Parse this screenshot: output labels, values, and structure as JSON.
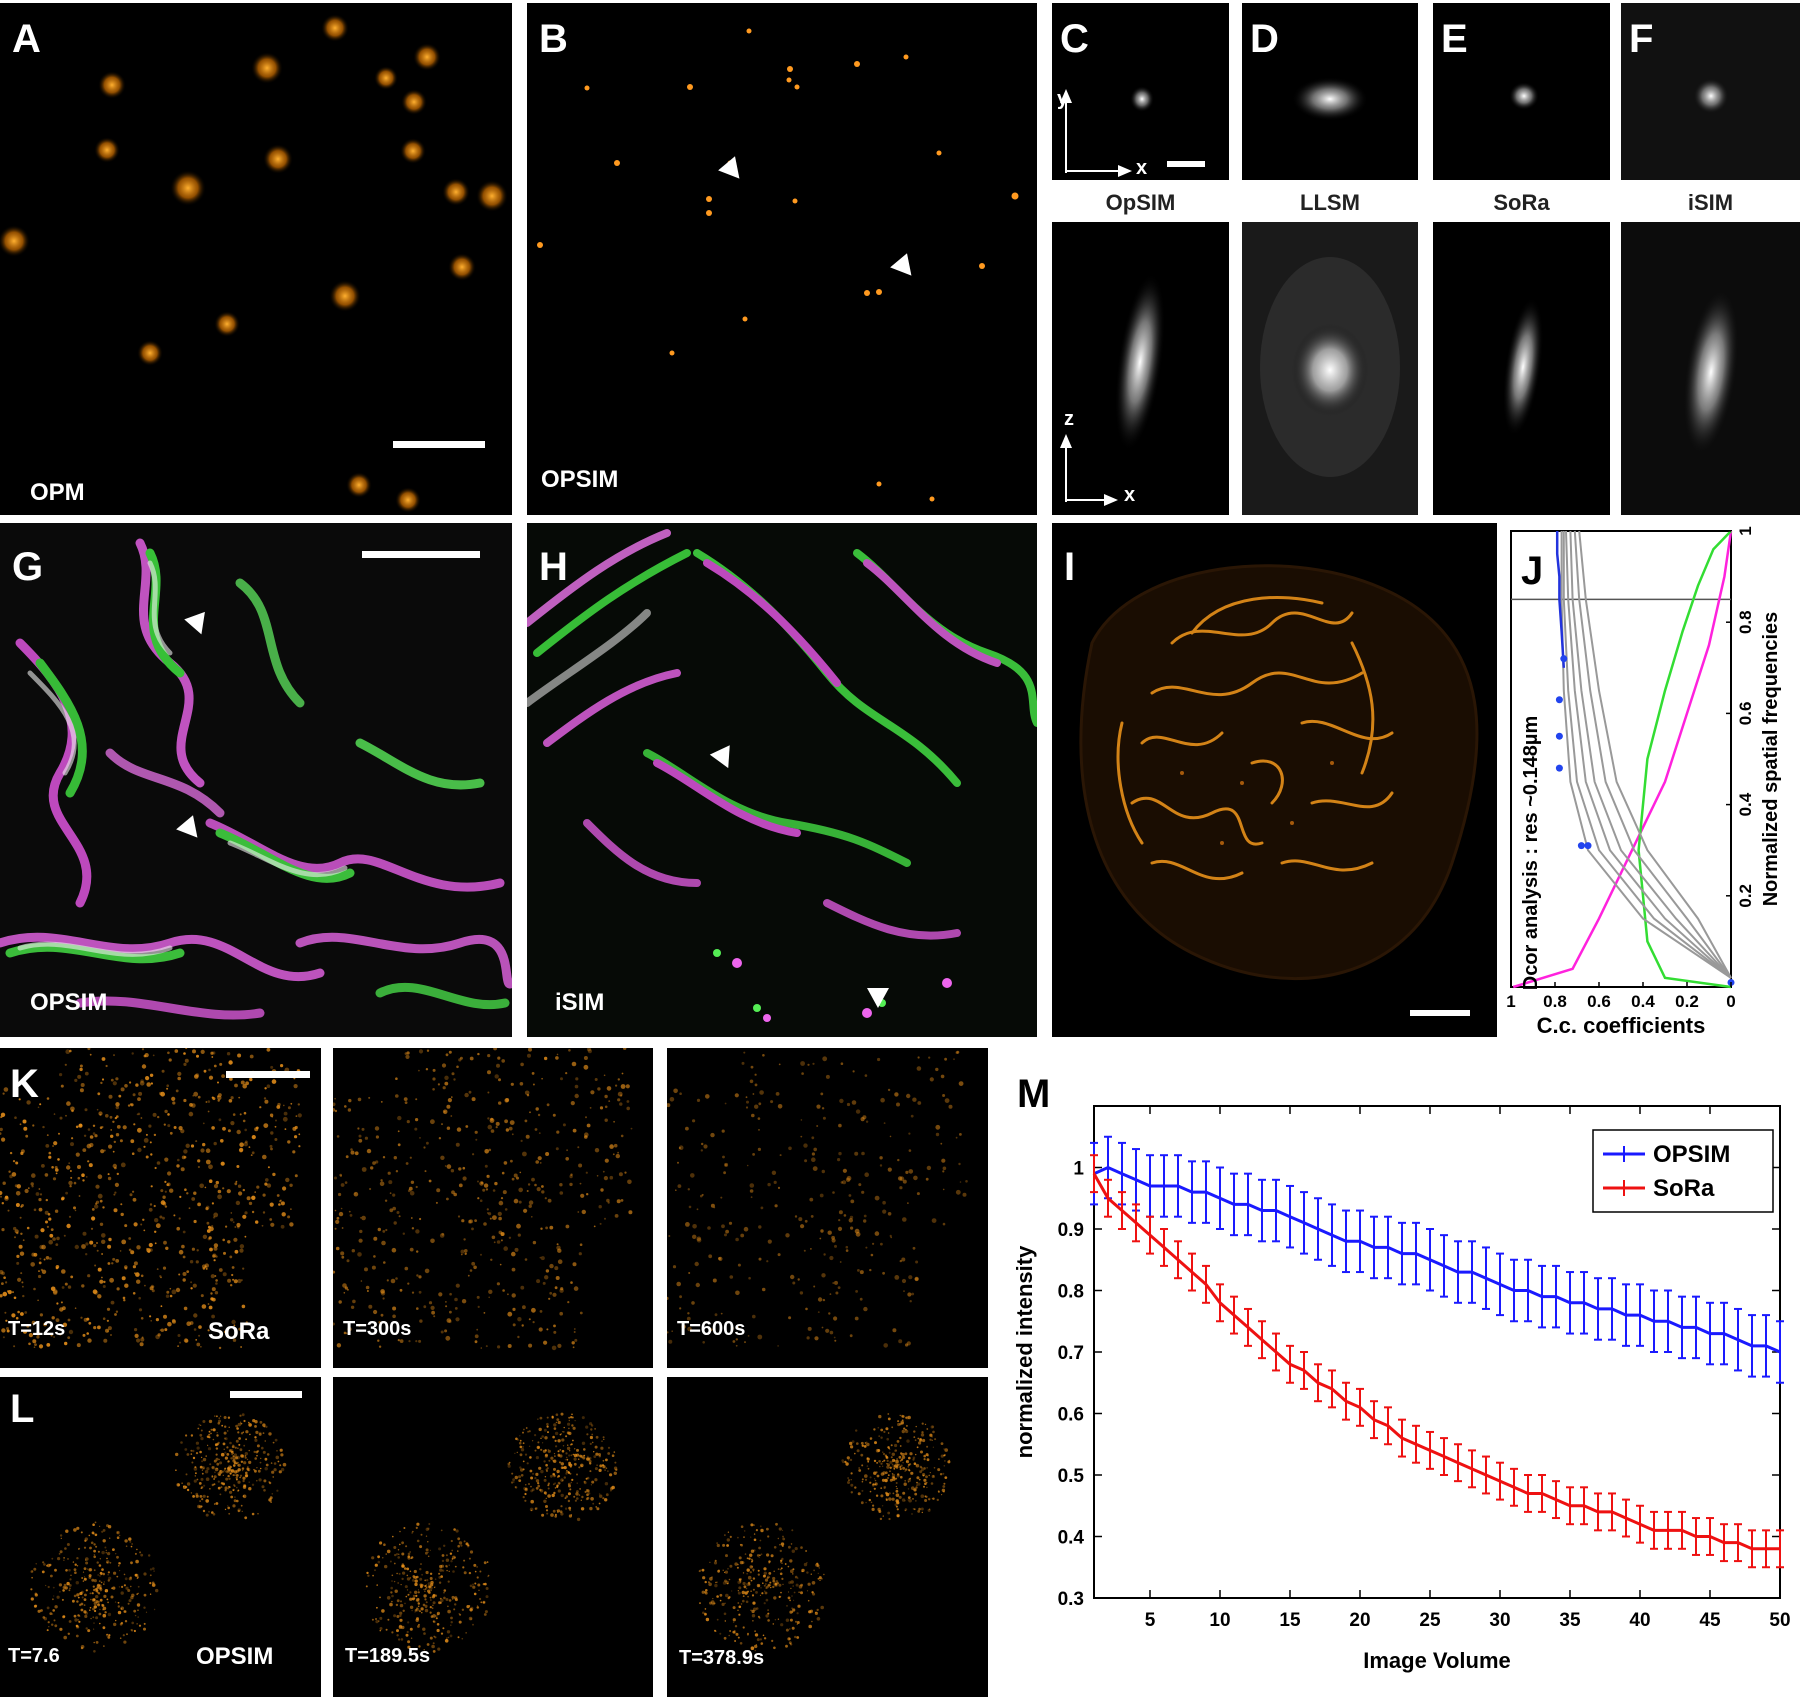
{
  "panels": {
    "A": {
      "letter": "A",
      "label": "OPM"
    },
    "B": {
      "letter": "B",
      "label": "OPSIM"
    },
    "C": {
      "letter": "C",
      "caption": "OpSIM",
      "axis_y": "y",
      "axis_x": "x",
      "axis_z": "z",
      "axis_x2": "x"
    },
    "D": {
      "letter": "D",
      "caption": "LLSM"
    },
    "E": {
      "letter": "E",
      "caption": "SoRa"
    },
    "F": {
      "letter": "F",
      "caption": "iSIM"
    },
    "G": {
      "letter": "G",
      "label": "OPSIM"
    },
    "H": {
      "letter": "H",
      "label": "iSIM"
    },
    "I": {
      "letter": "I"
    },
    "J": {
      "letter": "J",
      "left_label": "Dcor analysis : res ~0.148µm",
      "right_label": "Normalized spatial frequencies",
      "xlabel": "C.c. coefficients"
    },
    "K": {
      "letter": "K",
      "frames": [
        "T=12s",
        "T=300s",
        "T=600s"
      ],
      "label": "SoRa"
    },
    "L": {
      "letter": "L",
      "frames": [
        "T=7.6",
        "T=189.5s",
        "T=378.9s"
      ],
      "label": "OPSIM"
    },
    "M": {
      "letter": "M"
    }
  },
  "chart_data": [
    {
      "type": "line",
      "panel": "J",
      "xlabel": "C.c. coefficients",
      "ylabel": "Normalized spatial frequencies",
      "xlim": [
        1,
        0
      ],
      "ylim": [
        0,
        1
      ],
      "xticks": [
        "1",
        "0.8",
        "0.6",
        "0.4",
        "0.2",
        "0"
      ],
      "yticks": [
        "0.2",
        "0.4",
        "0.6",
        "0.8",
        "1"
      ],
      "series": [
        {
          "color": "#ff22dd",
          "x": [
            0.99,
            0.72,
            0.6,
            0.45,
            0.3,
            0.2,
            0.1,
            0.03,
            0.0
          ],
          "y": [
            0.0,
            0.04,
            0.15,
            0.3,
            0.45,
            0.6,
            0.75,
            0.9,
            1.0
          ]
        },
        {
          "color": "#33dd33",
          "x": [
            0.0,
            0.3,
            0.38,
            0.42,
            0.38,
            0.3,
            0.22,
            0.15,
            0.08,
            0.0
          ],
          "y": [
            0.0,
            0.02,
            0.1,
            0.3,
            0.5,
            0.65,
            0.78,
            0.88,
            0.96,
            1.0
          ]
        },
        {
          "color": "#999999",
          "x": [
            0.0,
            0.4,
            0.65,
            0.73,
            0.76,
            0.77,
            0.77
          ],
          "y": [
            0.02,
            0.15,
            0.3,
            0.45,
            0.65,
            0.85,
            1.0
          ]
        },
        {
          "color": "#999999",
          "x": [
            0.0,
            0.35,
            0.6,
            0.7,
            0.74,
            0.76,
            0.76
          ],
          "y": [
            0.02,
            0.15,
            0.3,
            0.45,
            0.65,
            0.85,
            1.0
          ]
        },
        {
          "color": "#999999",
          "x": [
            0.0,
            0.3,
            0.55,
            0.66,
            0.71,
            0.74,
            0.75
          ],
          "y": [
            0.02,
            0.15,
            0.3,
            0.45,
            0.65,
            0.85,
            1.0
          ]
        },
        {
          "color": "#999999",
          "x": [
            0.0,
            0.25,
            0.5,
            0.62,
            0.68,
            0.72,
            0.73
          ],
          "y": [
            0.02,
            0.15,
            0.3,
            0.45,
            0.65,
            0.85,
            1.0
          ]
        },
        {
          "color": "#999999",
          "x": [
            0.0,
            0.2,
            0.44,
            0.57,
            0.64,
            0.69,
            0.71
          ],
          "y": [
            0.02,
            0.15,
            0.3,
            0.45,
            0.65,
            0.85,
            1.0
          ]
        },
        {
          "color": "#999999",
          "x": [
            0.0,
            0.15,
            0.38,
            0.52,
            0.6,
            0.66,
            0.69
          ],
          "y": [
            0.02,
            0.15,
            0.3,
            0.45,
            0.65,
            0.85,
            1.0
          ]
        },
        {
          "color": "#2233dd",
          "x": [
            0.76,
            0.77,
            0.78,
            0.78,
            0.79,
            0.79
          ],
          "y": [
            0.7,
            0.78,
            0.85,
            0.9,
            0.95,
            1.0
          ]
        }
      ],
      "points": [
        {
          "x": 0.76,
          "y": 0.72
        },
        {
          "x": 0.78,
          "y": 0.63
        },
        {
          "x": 0.78,
          "y": 0.55
        },
        {
          "x": 0.78,
          "y": 0.48
        },
        {
          "x": 0.68,
          "y": 0.31
        },
        {
          "x": 0.65,
          "y": 0.31
        },
        {
          "x": 0.0,
          "y": 0.01
        }
      ],
      "hline": 0.85
    },
    {
      "type": "line",
      "panel": "M",
      "xlabel": "Image Volume",
      "ylabel": "normalized intensity",
      "xlim": [
        1,
        50
      ],
      "ylim": [
        0.3,
        1.1
      ],
      "xticks": [
        5,
        10,
        15,
        20,
        25,
        30,
        35,
        40,
        45,
        50
      ],
      "yticks": [
        0.3,
        0.4,
        0.5,
        0.6,
        0.7,
        0.8,
        0.9,
        1
      ],
      "legend_position": "top-right",
      "series": [
        {
          "name": "OPSIM",
          "color": "#1a1aff",
          "x": [
            1,
            2,
            3,
            4,
            5,
            6,
            7,
            8,
            9,
            10,
            11,
            12,
            13,
            14,
            15,
            16,
            17,
            18,
            19,
            20,
            21,
            22,
            23,
            24,
            25,
            26,
            27,
            28,
            29,
            30,
            31,
            32,
            33,
            34,
            35,
            36,
            37,
            38,
            39,
            40,
            41,
            42,
            43,
            44,
            45,
            46,
            47,
            48,
            49,
            50
          ],
          "y": [
            0.99,
            1.0,
            0.99,
            0.98,
            0.97,
            0.97,
            0.97,
            0.96,
            0.96,
            0.95,
            0.94,
            0.94,
            0.93,
            0.93,
            0.92,
            0.91,
            0.9,
            0.89,
            0.88,
            0.88,
            0.87,
            0.87,
            0.86,
            0.86,
            0.85,
            0.84,
            0.83,
            0.83,
            0.82,
            0.81,
            0.8,
            0.8,
            0.79,
            0.79,
            0.78,
            0.78,
            0.77,
            0.77,
            0.76,
            0.76,
            0.75,
            0.75,
            0.74,
            0.74,
            0.73,
            0.73,
            0.72,
            0.71,
            0.71,
            0.7
          ],
          "err": 0.05
        },
        {
          "name": "SoRa",
          "color": "#ee1111",
          "x": [
            1,
            2,
            3,
            4,
            5,
            6,
            7,
            8,
            9,
            10,
            11,
            12,
            13,
            14,
            15,
            16,
            17,
            18,
            19,
            20,
            21,
            22,
            23,
            24,
            25,
            26,
            27,
            28,
            29,
            30,
            31,
            32,
            33,
            34,
            35,
            36,
            37,
            38,
            39,
            40,
            41,
            42,
            43,
            44,
            45,
            46,
            47,
            48,
            49,
            50
          ],
          "y": [
            0.99,
            0.95,
            0.93,
            0.91,
            0.89,
            0.87,
            0.85,
            0.83,
            0.81,
            0.78,
            0.76,
            0.74,
            0.72,
            0.7,
            0.68,
            0.67,
            0.65,
            0.64,
            0.62,
            0.61,
            0.59,
            0.58,
            0.56,
            0.55,
            0.54,
            0.53,
            0.52,
            0.51,
            0.5,
            0.49,
            0.48,
            0.47,
            0.47,
            0.46,
            0.45,
            0.45,
            0.44,
            0.44,
            0.43,
            0.42,
            0.41,
            0.41,
            0.41,
            0.4,
            0.4,
            0.39,
            0.39,
            0.38,
            0.38,
            0.38
          ],
          "err": 0.03
        }
      ]
    }
  ]
}
